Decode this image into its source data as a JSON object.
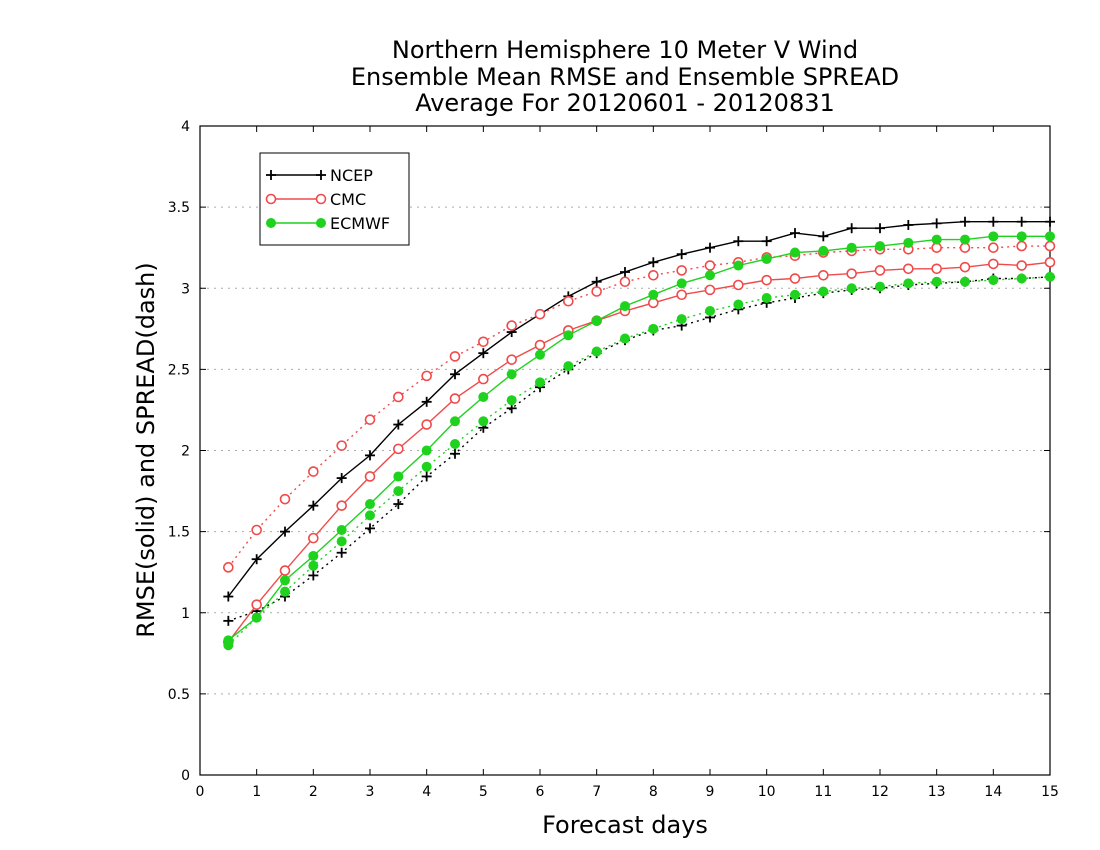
{
  "chart_data": {
    "type": "line",
    "title": [
      "Northern Hemisphere 10 Meter V Wind",
      "Ensemble Mean RMSE and Ensemble SPREAD",
      "Average For 20120601 - 20120831"
    ],
    "xlabel": "Forecast days",
    "ylabel": "RMSE(solid) and SPREAD(dash)",
    "xlim": [
      0,
      15
    ],
    "ylim": [
      0,
      4
    ],
    "xticks": [
      "0",
      "1",
      "2",
      "3",
      "4",
      "5",
      "6",
      "7",
      "8",
      "9",
      "10",
      "11",
      "12",
      "13",
      "14",
      "15"
    ],
    "yticks": [
      "0",
      "0.5",
      "1",
      "1.5",
      "2",
      "2.5",
      "3",
      "3.5",
      "4"
    ],
    "grid": true,
    "legend_position": "top-left",
    "x": [
      0.5,
      1,
      1.5,
      2,
      2.5,
      3,
      3.5,
      4,
      4.5,
      5,
      5.5,
      6,
      6.5,
      7,
      7.5,
      8,
      8.5,
      9,
      9.5,
      10,
      10.5,
      11,
      11.5,
      12,
      12.5,
      13,
      13.5,
      14,
      14.5,
      15
    ],
    "series": [
      {
        "name": "NCEP",
        "color": "#000000",
        "marker": "plus",
        "rmse": [
          1.1,
          1.33,
          1.5,
          1.66,
          1.83,
          1.97,
          2.16,
          2.3,
          2.47,
          2.6,
          2.73,
          2.84,
          2.95,
          3.04,
          3.1,
          3.16,
          3.21,
          3.25,
          3.29,
          3.29,
          3.34,
          3.32,
          3.37,
          3.37,
          3.39,
          3.4,
          3.41,
          3.41,
          3.41,
          3.41
        ],
        "spread": [
          0.95,
          1.01,
          1.1,
          1.23,
          1.37,
          1.52,
          1.67,
          1.84,
          1.98,
          2.14,
          2.26,
          2.39,
          2.5,
          2.6,
          2.68,
          2.74,
          2.77,
          2.82,
          2.87,
          2.91,
          2.94,
          2.97,
          2.99,
          3.0,
          3.02,
          3.03,
          3.04,
          3.06,
          3.06,
          3.07
        ]
      },
      {
        "name": "CMC",
        "color": "#f04a4a",
        "marker": "circle",
        "rmse": [
          0.82,
          1.05,
          1.26,
          1.46,
          1.66,
          1.84,
          2.01,
          2.16,
          2.32,
          2.44,
          2.56,
          2.65,
          2.74,
          2.8,
          2.86,
          2.91,
          2.96,
          2.99,
          3.02,
          3.05,
          3.06,
          3.08,
          3.09,
          3.11,
          3.12,
          3.12,
          3.13,
          3.15,
          3.14,
          3.16
        ],
        "spread": [
          1.28,
          1.51,
          1.7,
          1.87,
          2.03,
          2.19,
          2.33,
          2.46,
          2.58,
          2.67,
          2.77,
          2.84,
          2.92,
          2.98,
          3.04,
          3.08,
          3.11,
          3.14,
          3.16,
          3.19,
          3.2,
          3.22,
          3.23,
          3.24,
          3.24,
          3.25,
          3.25,
          3.25,
          3.26,
          3.26
        ]
      },
      {
        "name": "ECMWF",
        "color": "#1ed21e",
        "marker": "dot",
        "rmse": [
          0.83,
          0.97,
          1.2,
          1.35,
          1.51,
          1.67,
          1.84,
          2.0,
          2.18,
          2.33,
          2.47,
          2.59,
          2.71,
          2.8,
          2.89,
          2.96,
          3.03,
          3.08,
          3.14,
          3.18,
          3.22,
          3.23,
          3.25,
          3.26,
          3.28,
          3.3,
          3.3,
          3.32,
          3.32,
          3.32
        ],
        "spread": [
          0.8,
          0.97,
          1.13,
          1.29,
          1.44,
          1.6,
          1.75,
          1.9,
          2.04,
          2.18,
          2.31,
          2.42,
          2.52,
          2.61,
          2.69,
          2.75,
          2.81,
          2.86,
          2.9,
          2.94,
          2.96,
          2.98,
          3.0,
          3.01,
          3.03,
          3.04,
          3.04,
          3.05,
          3.06,
          3.07
        ]
      }
    ]
  }
}
